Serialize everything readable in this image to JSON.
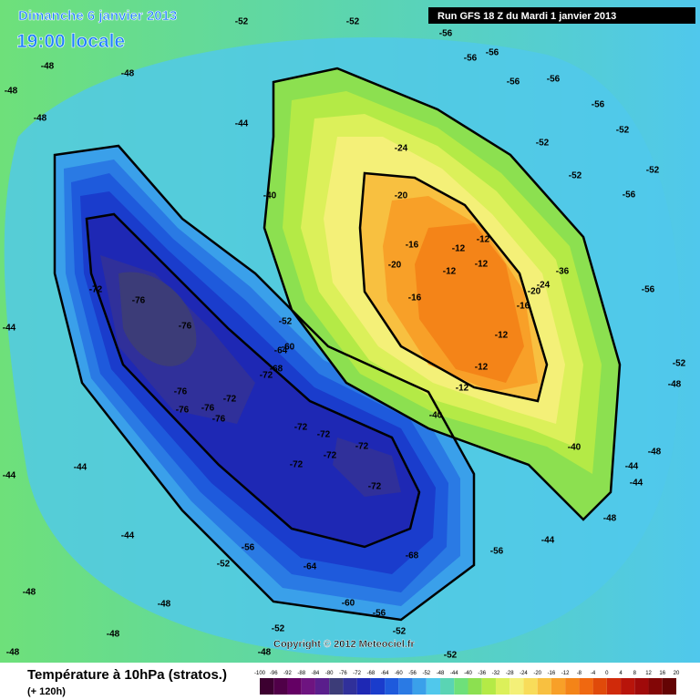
{
  "header": {
    "date": "Dimanche 6 janvier 2013",
    "time": "19:00 locale",
    "run": "Run GFS 18 Z du Mardi 1 janvier 2013"
  },
  "footer": {
    "title": "Température à 10hPa (stratos.)",
    "lead": "(+ 120h)",
    "copyright": "Copyright © 2012 Meteociel.fr"
  },
  "map": {
    "contour_labels": [
      -72,
      -76,
      -76,
      -76,
      -76,
      -76,
      -76,
      -72,
      -68,
      -64,
      -60,
      -52,
      -72,
      -72,
      -72,
      -72,
      -72,
      -72,
      -72,
      -68,
      -64,
      -60,
      -56,
      -56,
      -52,
      -44,
      -44,
      -44,
      -48,
      -52,
      -52,
      -44,
      -40,
      -24,
      -20,
      -16,
      -20,
      -16,
      -12,
      -12,
      -12,
      -12,
      -12,
      -12,
      -12,
      -16,
      -20,
      -24,
      -36,
      -40,
      -40,
      -56,
      -56,
      -56,
      -56,
      -56,
      -56,
      -56,
      -56,
      -52,
      -52,
      -52,
      -52,
      -52,
      -48,
      -48,
      -44,
      -44,
      -48,
      -44,
      -56,
      -52,
      -52,
      -52,
      -48,
      -48,
      -48,
      -48,
      -48,
      -44,
      -48,
      -48,
      -48
    ]
  },
  "scale": {
    "ticks": [
      -100,
      -96,
      -92,
      -88,
      -84,
      -80,
      -76,
      -72,
      -68,
      -64,
      -60,
      -56,
      -52,
      -48,
      -44,
      -40,
      -36,
      -32,
      -28,
      -24,
      -20,
      -16,
      -12,
      -8,
      -4,
      0,
      4,
      8,
      12,
      16,
      20
    ],
    "colors": [
      "#3c0030",
      "#500048",
      "#640064",
      "#6e1480",
      "#5a1e8c",
      "#3c3c78",
      "#30309a",
      "#1e28b4",
      "#1a3ccc",
      "#1e5adc",
      "#2a7ae4",
      "#3aa0ea",
      "#50c8ec",
      "#5ad4b4",
      "#6ee07a",
      "#8ce050",
      "#b4ea46",
      "#dcf05a",
      "#f4f078",
      "#f8dc5a",
      "#f8c040",
      "#f8a028",
      "#f48418",
      "#f06810",
      "#e04a0a",
      "#d02a0a",
      "#b8140a",
      "#a00a0a",
      "#820606",
      "#640404"
    ]
  }
}
